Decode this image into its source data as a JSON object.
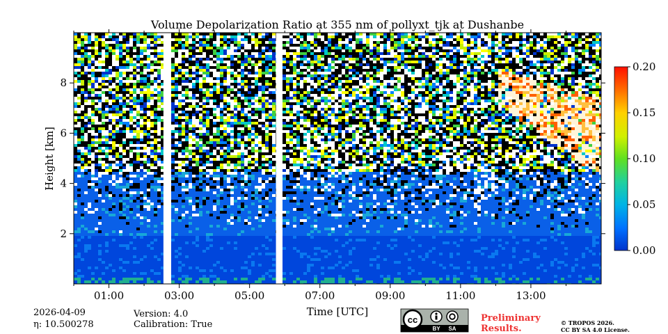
{
  "chart_data": {
    "type": "heatmap",
    "title": "Volume Depolarization Ratio at 355 nm of pollyxt_tjk at Dushanbe",
    "xlabel": "Time [UTC]",
    "ylabel": "Height [km]",
    "xlim_hours": [
      0.0,
      15.0
    ],
    "ylim_km": [
      0.0,
      10.0
    ],
    "x_ticks": [
      {
        "hour": 1,
        "label": "01:00"
      },
      {
        "hour": 3,
        "label": "03:00"
      },
      {
        "hour": 5,
        "label": "05:00"
      },
      {
        "hour": 7,
        "label": "07:00"
      },
      {
        "hour": 9,
        "label": "09:00"
      },
      {
        "hour": 11,
        "label": "11:00"
      },
      {
        "hour": 13,
        "label": "13:00"
      }
    ],
    "x_minor_hours": [
      0,
      2,
      4,
      6,
      8,
      10,
      12,
      14
    ],
    "y_ticks": [
      {
        "km": 2,
        "label": "2"
      },
      {
        "km": 4,
        "label": "4"
      },
      {
        "km": 6,
        "label": "6"
      },
      {
        "km": 8,
        "label": "8"
      }
    ],
    "data_gaps_hours": [
      [
        2.55,
        2.7
      ],
      [
        5.75,
        5.85
      ]
    ],
    "colorbar": {
      "min": 0.0,
      "max": 0.2,
      "ticks": [
        {
          "value": 0.0,
          "label": "0.00"
        },
        {
          "value": 0.05,
          "label": "0.05"
        },
        {
          "value": 0.1,
          "label": "0.10"
        },
        {
          "value": 0.15,
          "label": "0.15"
        },
        {
          "value": 0.2,
          "label": "0.20"
        }
      ],
      "colors": [
        "#0033cc",
        "#0080ff",
        "#00c8c8",
        "#40d040",
        "#c8f000",
        "#ffff00",
        "#ffb000",
        "#ff6000",
        "#ff2000",
        "#e00000"
      ]
    },
    "features": [
      {
        "name": "boundary-layer",
        "height_km": [
          0.0,
          2.0
        ],
        "value_approx": 0.02
      },
      {
        "name": "aerosol-layer",
        "height_km": [
          2.0,
          4.5
        ],
        "value_approx": 0.04
      },
      {
        "name": "cirrus-cloud",
        "time_hours": [
          12.0,
          15.0
        ],
        "height_km": [
          4.5,
          8.8
        ],
        "value_approx": 0.2
      }
    ]
  },
  "footer": {
    "date": "2026-04-09",
    "eta_label": "η: 10.500278",
    "version": "Version: 4.0",
    "calibration": "Calibration: True",
    "cc_text": "cc",
    "by_text": "BY",
    "sa_text": "SA",
    "prelim_line1": "Preliminary",
    "prelim_line2": "Results.",
    "copyright_line1": "© TROPOS 2026.",
    "copyright_line2": "CC BY SA 4.0 License."
  }
}
